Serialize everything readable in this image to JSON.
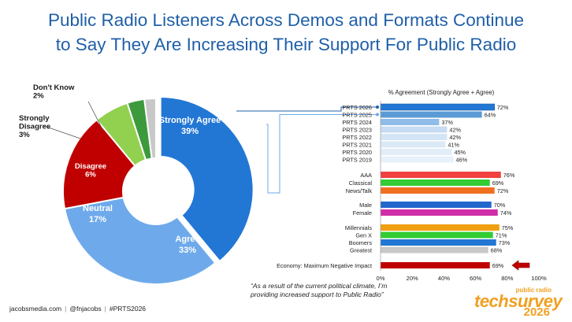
{
  "title_line1": "Public Radio Listeners Across Demos and Formats Continue",
  "title_line2": "to Say They Are Increasing Their Support For Public Radio",
  "quote_line1": "“As a result of the current political climate, I’m",
  "quote_line2": "providing increased support to Public Radio”",
  "footer": {
    "site": "jacobsmedia.com",
    "handle": "@fnjacobs",
    "hashtag": "#PRTS2026"
  },
  "logo": {
    "top": "public radio",
    "main": "techsurvey",
    "year": "2026"
  },
  "chart_data": [
    {
      "type": "pie",
      "labels": [
        "Strongly Agree",
        "Agree",
        "Neutral",
        "Disagree",
        "Strongly Disagree",
        "Don't Know"
      ],
      "values": [
        39,
        33,
        17,
        6,
        3,
        2
      ],
      "display": [
        "39%",
        "33%",
        "17%",
        "6%",
        "3%",
        "2%"
      ],
      "colors": [
        "#2277d4",
        "#6eaaeb",
        "#c00000",
        "#92d050",
        "#3c9a3c",
        "#c8c8c8"
      ]
    },
    {
      "type": "bar",
      "orientation": "horizontal",
      "title": "% Agreement (Strongly Agree + Agree)",
      "categories": [
        "PRTS 2026",
        "PRTS 2025",
        "PRTS 2024",
        "PRTS 2023",
        "PRTS 2022",
        "PRTS 2021",
        "PRTS 2020",
        "PRTS 2019",
        "AAA",
        "Classical",
        "News/Talk",
        "Male",
        "Female",
        "Millennials",
        "Gen X",
        "Boomers",
        "Greatest",
        "Economy: Maximum Negative Impact"
      ],
      "values": [
        72,
        64,
        37,
        42,
        42,
        41,
        45,
        46,
        76,
        69,
        72,
        70,
        74,
        75,
        71,
        73,
        68,
        69
      ],
      "display": [
        "72%",
        "64%",
        "37%",
        "42%",
        "42%",
        "41%",
        "45%",
        "46%",
        "76%",
        "69%",
        "72%",
        "70%",
        "74%",
        "75%",
        "71%",
        "73%",
        "68%",
        "69%"
      ],
      "colors": [
        "#2277d4",
        "#5b9bd5",
        "#8fbce8",
        "#c7dcf2",
        "#d4e5f5",
        "#dbe9f6",
        "#e2edf8",
        "#e8f1fa",
        "#f04040",
        "#33cc33",
        "#f07020",
        "#2266cc",
        "#d02fa8",
        "#f0a010",
        "#33cc33",
        "#2277d4",
        "#c8c8c8",
        "#c00000"
      ],
      "xlim": [
        0,
        100
      ],
      "ticks": [
        "0%",
        "20%",
        "40%",
        "60%",
        "80%",
        "100%"
      ],
      "tick_values": [
        0,
        20,
        40,
        60,
        80,
        100
      ]
    }
  ]
}
